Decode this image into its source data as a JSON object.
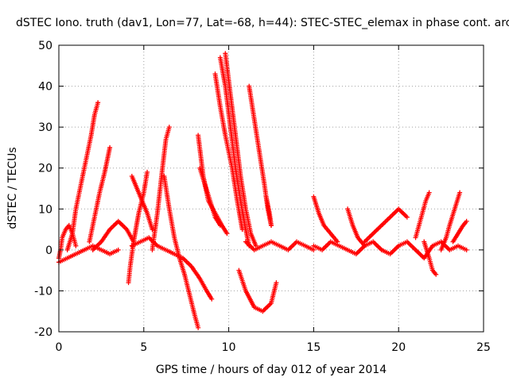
{
  "chart_data": {
    "type": "scatter",
    "title": "dSTEC Iono. truth (dav1, Lon=77, Lat=-68, h=44): STEC-STEC_elemax in phase cont. arc",
    "xlabel": "GPS time / hours of day 012 of year 2014",
    "ylabel": "dSTEC  / TECUs",
    "xlim": [
      0,
      25
    ],
    "ylim": [
      -20,
      50
    ],
    "xticks": [
      0,
      5,
      10,
      15,
      20,
      25
    ],
    "yticks": [
      -20,
      -10,
      0,
      10,
      20,
      30,
      40,
      50
    ],
    "grid": true,
    "marker": "+",
    "color": "#ff0000",
    "series": [
      {
        "x": [
          0.0,
          0.1,
          0.2,
          0.4,
          0.6,
          0.8,
          1.0
        ],
        "y": [
          -2,
          0,
          3,
          5,
          6,
          4,
          1
        ]
      },
      {
        "x": [
          0.5,
          0.8,
          1.0,
          1.3,
          1.6,
          1.9,
          2.1,
          2.3
        ],
        "y": [
          0,
          4,
          10,
          16,
          22,
          28,
          33,
          36
        ]
      },
      {
        "x": [
          1.8,
          2.1,
          2.4,
          2.7,
          2.9,
          3.0
        ],
        "y": [
          2,
          8,
          14,
          19,
          23,
          25
        ]
      },
      {
        "x": [
          0.0,
          0.5,
          1.0,
          1.5,
          2.0,
          2.5,
          3.0,
          3.5
        ],
        "y": [
          -3,
          -2,
          -1,
          0,
          1,
          0,
          -1,
          0
        ]
      },
      {
        "x": [
          2.0,
          2.5,
          3.0,
          3.5,
          4.0,
          4.4
        ],
        "y": [
          0,
          2,
          5,
          7,
          5,
          2
        ]
      },
      {
        "x": [
          4.1,
          4.2,
          4.4,
          4.7,
          5.0,
          5.2
        ],
        "y": [
          -8,
          -4,
          2,
          9,
          14,
          19
        ]
      },
      {
        "x": [
          4.3,
          4.6,
          4.9,
          5.2,
          5.5
        ],
        "y": [
          18,
          15,
          12,
          9,
          5
        ]
      },
      {
        "x": [
          5.5,
          5.8,
          6.1,
          6.3,
          6.5
        ],
        "y": [
          0,
          9,
          20,
          27,
          30
        ]
      },
      {
        "x": [
          6.2,
          6.5,
          6.8,
          7.1,
          7.4,
          7.7,
          8.0,
          8.2
        ],
        "y": [
          18,
          10,
          3,
          -2,
          -6,
          -11,
          -16,
          -19
        ]
      },
      {
        "x": [
          4.3,
          4.8,
          5.3,
          5.8,
          6.3,
          6.8,
          7.3,
          7.8,
          8.3,
          8.7,
          9.0
        ],
        "y": [
          1,
          2,
          3,
          1,
          0,
          -1,
          -2,
          -4,
          -7,
          -10,
          -12
        ]
      },
      {
        "x": [
          8.2,
          8.5,
          8.8,
          9.2,
          9.6,
          9.9
        ],
        "y": [
          28,
          18,
          12,
          9,
          6,
          4
        ]
      },
      {
        "x": [
          8.3,
          8.6,
          8.9,
          9.2,
          9.5
        ],
        "y": [
          20,
          16,
          12,
          8,
          6
        ]
      },
      {
        "x": [
          9.2,
          9.5,
          9.8,
          10.2,
          10.5,
          10.8
        ],
        "y": [
          43,
          35,
          28,
          20,
          12,
          5
        ]
      },
      {
        "x": [
          9.5,
          9.8,
          10.1,
          10.4,
          10.7,
          11.0,
          11.2
        ],
        "y": [
          47,
          40,
          30,
          20,
          12,
          5,
          1
        ]
      },
      {
        "x": [
          9.8,
          10.1,
          10.4,
          10.7,
          11.0,
          11.3,
          11.6
        ],
        "y": [
          48,
          38,
          28,
          18,
          10,
          4,
          1
        ]
      },
      {
        "x": [
          11.2,
          11.5,
          11.8,
          12.1,
          12.3,
          12.5
        ],
        "y": [
          40,
          32,
          24,
          16,
          10,
          6
        ]
      },
      {
        "x": [
          10.6,
          11.0,
          11.5,
          12.0,
          12.5,
          12.8
        ],
        "y": [
          -5,
          -10,
          -14,
          -15,
          -13,
          -8
        ]
      },
      {
        "x": [
          11.0,
          11.5,
          12.0,
          12.5,
          13.0,
          13.5,
          14.0,
          14.5,
          15.0
        ],
        "y": [
          2,
          0,
          1,
          2,
          1,
          0,
          2,
          1,
          0
        ]
      },
      {
        "x": [
          12.2,
          12.4,
          12.5
        ],
        "y": [
          13,
          9,
          6
        ]
      },
      {
        "x": [
          15.0,
          15.3,
          15.6,
          16.0,
          16.4
        ],
        "y": [
          13,
          9,
          6,
          4,
          2
        ]
      },
      {
        "x": [
          15.0,
          15.5,
          16.0,
          16.5,
          17.0,
          17.5,
          18.0,
          18.5,
          19.0
        ],
        "y": [
          1,
          0,
          2,
          1,
          0,
          -1,
          1,
          2,
          0
        ]
      },
      {
        "x": [
          17.0,
          17.3,
          17.6,
          18.0
        ],
        "y": [
          10,
          6,
          3,
          1
        ]
      },
      {
        "x": [
          18.0,
          18.5,
          19.0,
          19.5,
          20.0,
          20.5
        ],
        "y": [
          2,
          4,
          6,
          8,
          10,
          8
        ]
      },
      {
        "x": [
          19.0,
          19.5,
          20.0,
          20.5,
          21.0,
          21.5,
          22.0,
          22.5,
          23.0,
          23.5,
          24.0
        ],
        "y": [
          0,
          -1,
          1,
          2,
          0,
          -2,
          1,
          2,
          0,
          1,
          0
        ]
      },
      {
        "x": [
          21.0,
          21.2,
          21.4,
          21.6,
          21.8
        ],
        "y": [
          3,
          6,
          9,
          12,
          14
        ]
      },
      {
        "x": [
          21.5,
          21.8,
          22.0,
          22.2
        ],
        "y": [
          2,
          -2,
          -5,
          -6
        ]
      },
      {
        "x": [
          22.5,
          22.8,
          23.0,
          23.3,
          23.6
        ],
        "y": [
          0,
          3,
          6,
          10,
          14
        ]
      },
      {
        "x": [
          23.2,
          23.5,
          23.8,
          24.0
        ],
        "y": [
          2,
          4,
          6,
          7
        ]
      }
    ]
  }
}
